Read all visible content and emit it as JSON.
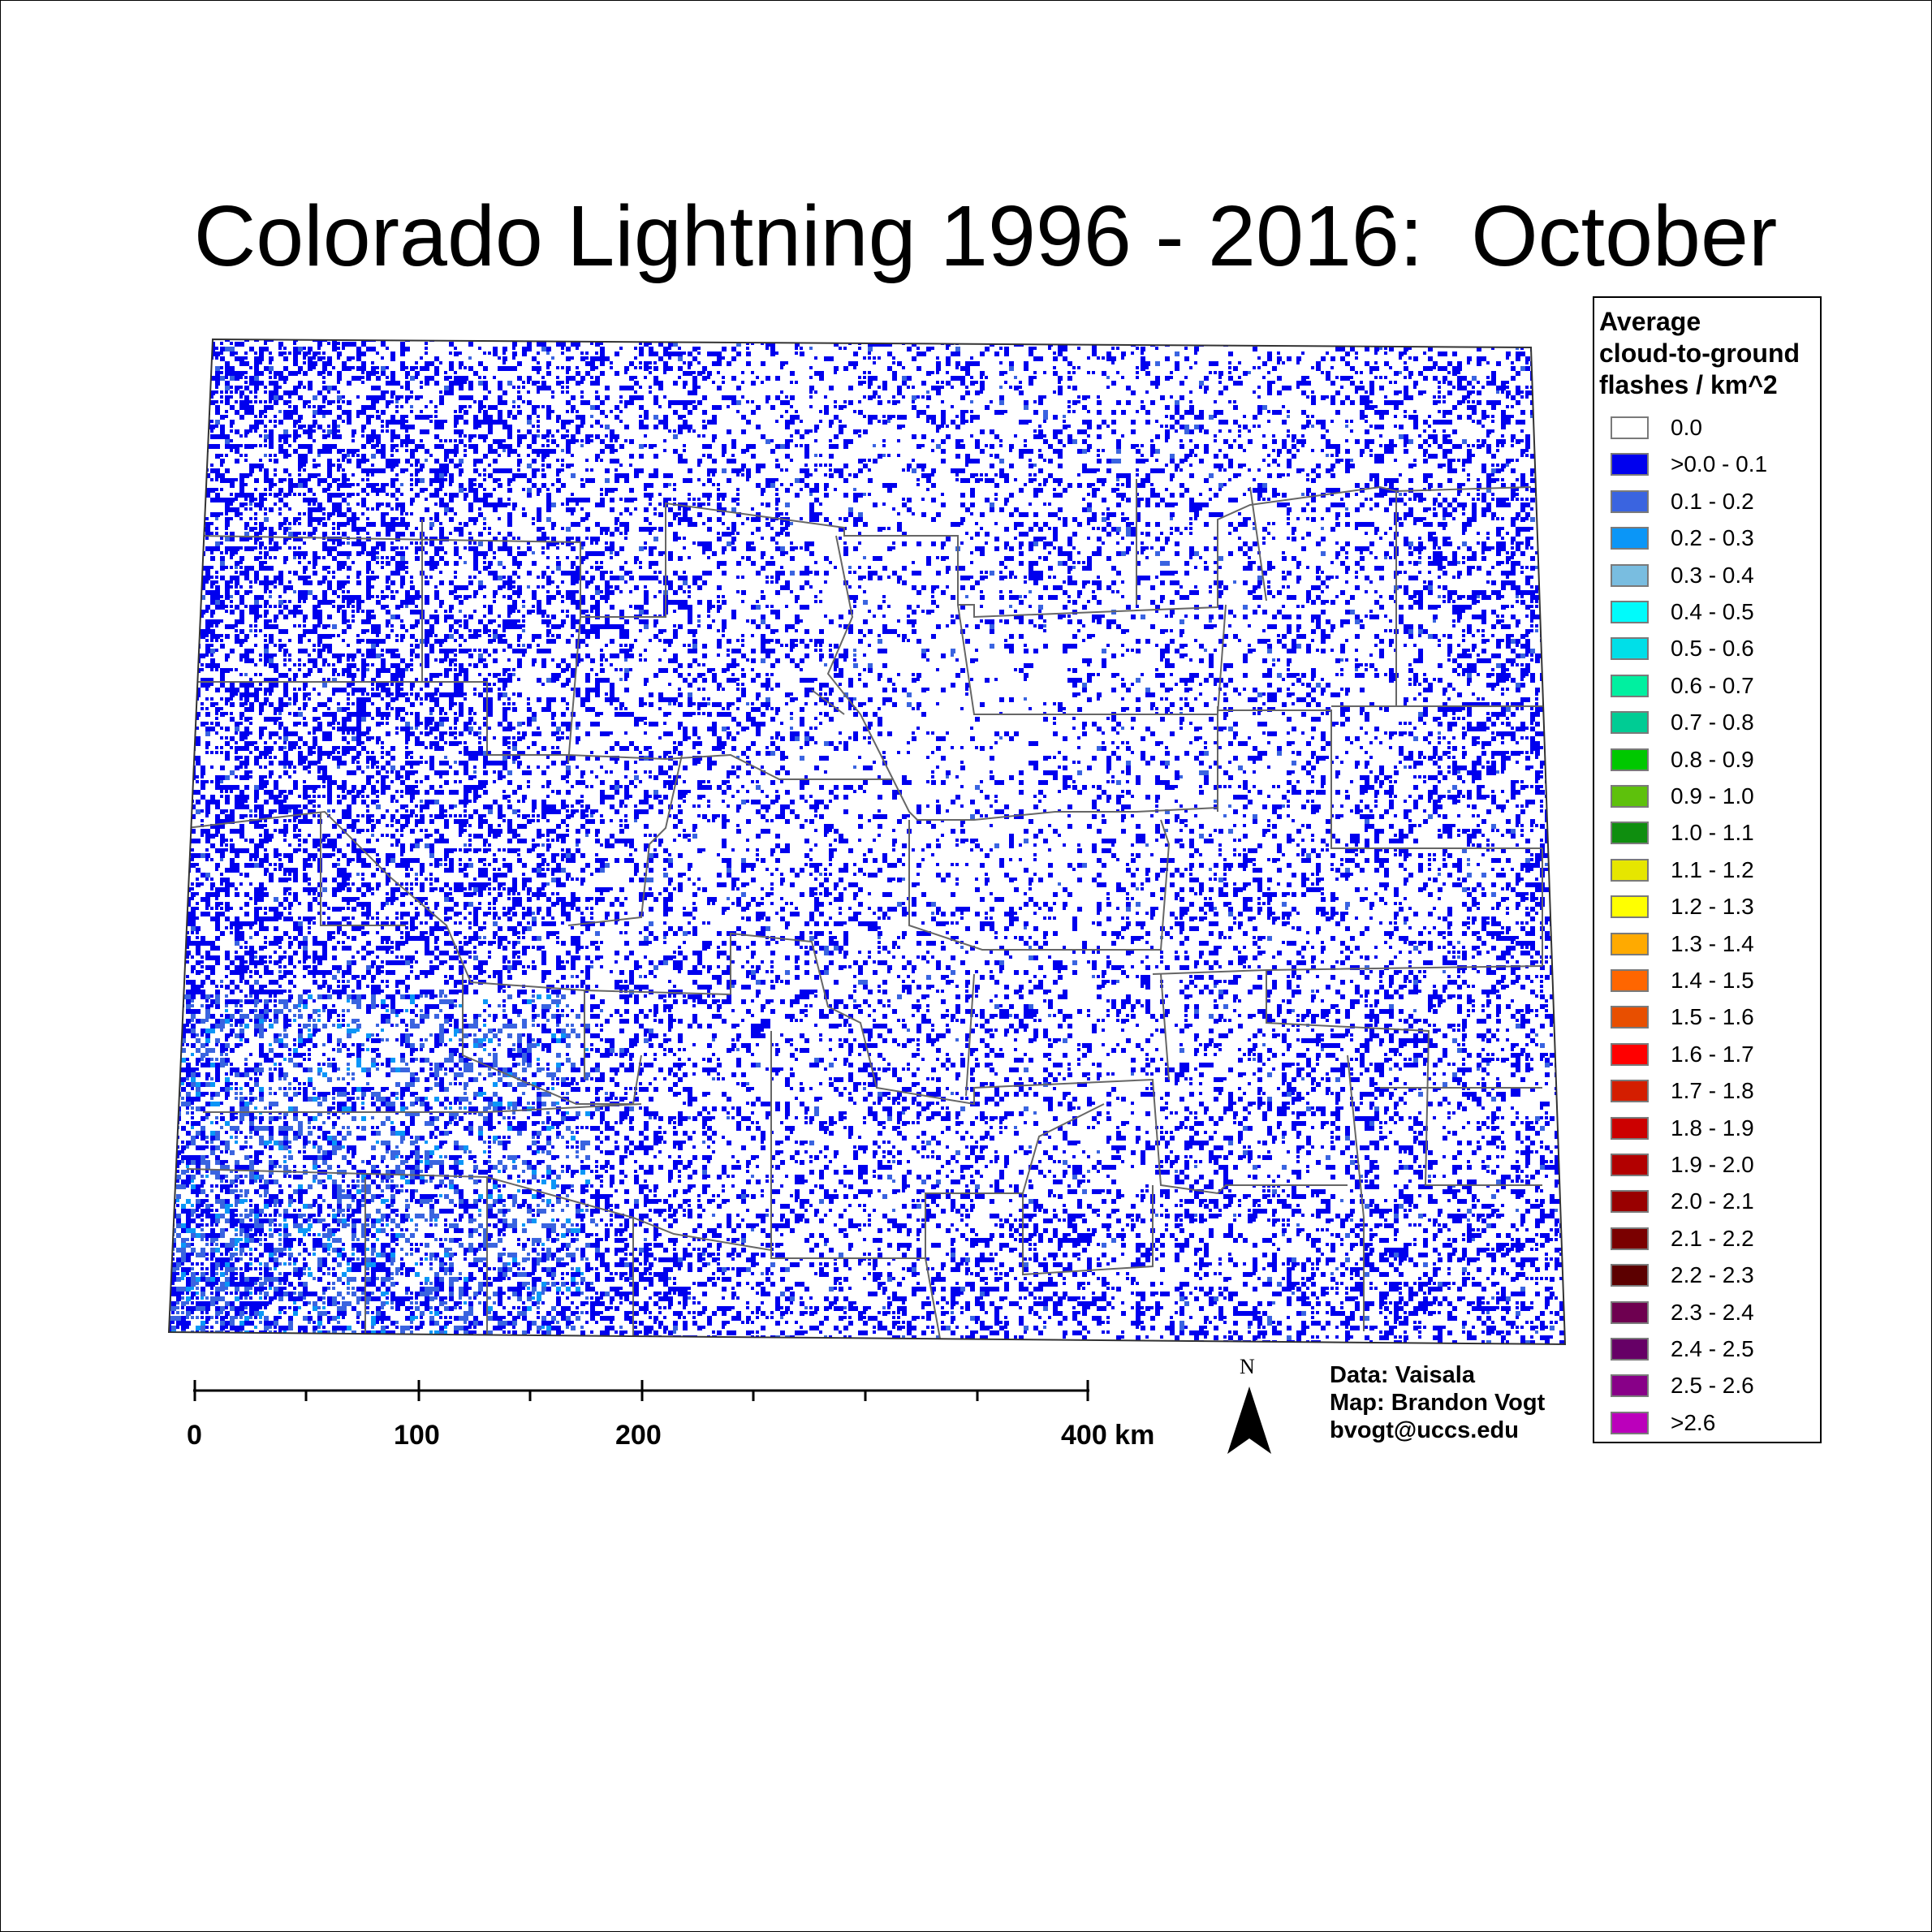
{
  "title": "Colorado Lightning 1996 - 2016:  October",
  "legend": {
    "title_lines": [
      "Average",
      "cloud-to-ground",
      "flashes / km^2"
    ],
    "items": [
      {
        "label": "0.0",
        "color": "#ffffff"
      },
      {
        "label": ">0.0 - 0.1",
        "color": "#0000ee"
      },
      {
        "label": "0.1 - 0.2",
        "color": "#3a64e0"
      },
      {
        "label": "0.2 - 0.3",
        "color": "#0b96f7"
      },
      {
        "label": "0.3 - 0.4",
        "color": "#79bde0"
      },
      {
        "label": "0.4 - 0.5",
        "color": "#00fbfb"
      },
      {
        "label": "0.5 - 0.6",
        "color": "#00dfe8"
      },
      {
        "label": "0.6 - 0.7",
        "color": "#00f0a0"
      },
      {
        "label": "0.7 - 0.8",
        "color": "#00cc94"
      },
      {
        "label": "0.8 - 0.9",
        "color": "#00c800"
      },
      {
        "label": "0.9 - 1.0",
        "color": "#5ec10c"
      },
      {
        "label": "1.0 - 1.1",
        "color": "#0f8e0f"
      },
      {
        "label": "1.1 - 1.2",
        "color": "#e6e600"
      },
      {
        "label": "1.2 - 1.3",
        "color": "#ffff00"
      },
      {
        "label": "1.3 - 1.4",
        "color": "#ffaa00"
      },
      {
        "label": "1.4 - 1.5",
        "color": "#ff6600"
      },
      {
        "label": "1.5 - 1.6",
        "color": "#e84f00"
      },
      {
        "label": "1.6 - 1.7",
        "color": "#ff0000"
      },
      {
        "label": "1.7 - 1.8",
        "color": "#d41e00"
      },
      {
        "label": "1.8 - 1.9",
        "color": "#cc0000"
      },
      {
        "label": "1.9 - 2.0",
        "color": "#b20000"
      },
      {
        "label": "2.0 - 2.1",
        "color": "#990000"
      },
      {
        "label": "2.1 - 2.2",
        "color": "#7a0000"
      },
      {
        "label": "2.2 - 2.3",
        "color": "#5c0000"
      },
      {
        "label": "2.3 - 2.4",
        "color": "#6e0050"
      },
      {
        "label": "2.4 - 2.5",
        "color": "#660066"
      },
      {
        "label": "2.5 - 2.6",
        "color": "#880088"
      },
      {
        "label": ">2.6",
        "color": "#bb00bb"
      }
    ]
  },
  "scale_bar": {
    "labels": [
      "0",
      "100",
      "200",
      "400 km"
    ]
  },
  "north_arrow": {
    "label": "N"
  },
  "credits": {
    "data": "Data: Vaisala",
    "map": "Map: Brandon Vogt",
    "email": "bvogt@uccs.edu"
  }
}
